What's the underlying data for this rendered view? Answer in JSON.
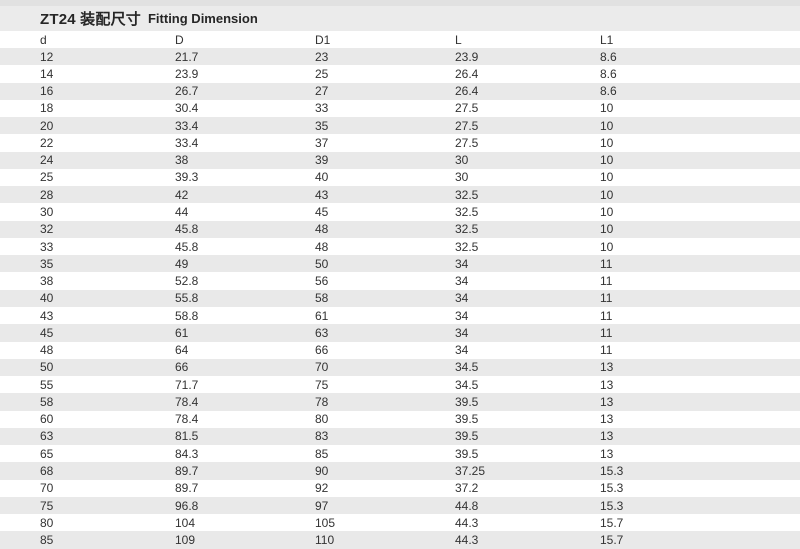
{
  "title": {
    "main": "ZT24 装配尺寸",
    "en": "Fitting Dimension"
  },
  "table": {
    "columns": [
      "d",
      "D",
      "D1",
      "L",
      "L1"
    ],
    "rows": [
      [
        "12",
        "21.7",
        "23",
        "23.9",
        "8.6"
      ],
      [
        "14",
        "23.9",
        "25",
        "26.4",
        "8.6"
      ],
      [
        "16",
        "26.7",
        "27",
        "26.4",
        "8.6"
      ],
      [
        "18",
        "30.4",
        "33",
        "27.5",
        "10"
      ],
      [
        "20",
        "33.4",
        "35",
        "27.5",
        "10"
      ],
      [
        "22",
        "33.4",
        "37",
        "27.5",
        "10"
      ],
      [
        "24",
        "38",
        "39",
        "30",
        "10"
      ],
      [
        "25",
        "39.3",
        "40",
        "30",
        "10"
      ],
      [
        "28",
        "42",
        "43",
        "32.5",
        "10"
      ],
      [
        "30",
        "44",
        "45",
        "32.5",
        "10"
      ],
      [
        "32",
        "45.8",
        "48",
        "32.5",
        "10"
      ],
      [
        "33",
        "45.8",
        "48",
        "32.5",
        "10"
      ],
      [
        "35",
        "49",
        "50",
        "34",
        "11"
      ],
      [
        "38",
        "52.8",
        "56",
        "34",
        "11"
      ],
      [
        "40",
        "55.8",
        "58",
        "34",
        "11"
      ],
      [
        "43",
        "58.8",
        "61",
        "34",
        "11"
      ],
      [
        "45",
        "61",
        "63",
        "34",
        "11"
      ],
      [
        "48",
        "64",
        "66",
        "34",
        "11"
      ],
      [
        "50",
        "66",
        "70",
        "34.5",
        "13"
      ],
      [
        "55",
        "71.7",
        "75",
        "34.5",
        "13"
      ],
      [
        "58",
        "78.4",
        "78",
        "39.5",
        "13"
      ],
      [
        "60",
        "78.4",
        "80",
        "39.5",
        "13"
      ],
      [
        "63",
        "81.5",
        "83",
        "39.5",
        "13"
      ],
      [
        "65",
        "84.3",
        "85",
        "39.5",
        "13"
      ],
      [
        "68",
        "89.7",
        "90",
        "37.25",
        "15.3"
      ],
      [
        "70",
        "89.7",
        "92",
        "37.2",
        "15.3"
      ],
      [
        "75",
        "96.8",
        "97",
        "44.8",
        "15.3"
      ],
      [
        "80",
        "104",
        "105",
        "44.3",
        "15.7"
      ],
      [
        "85",
        "109",
        "110",
        "44.3",
        "15.7"
      ]
    ]
  },
  "colors": {
    "stripe_gray": "#e9e9e9",
    "title_band": "#ebebeb",
    "top_strip": "#e1e1e1",
    "text": "#333333"
  }
}
